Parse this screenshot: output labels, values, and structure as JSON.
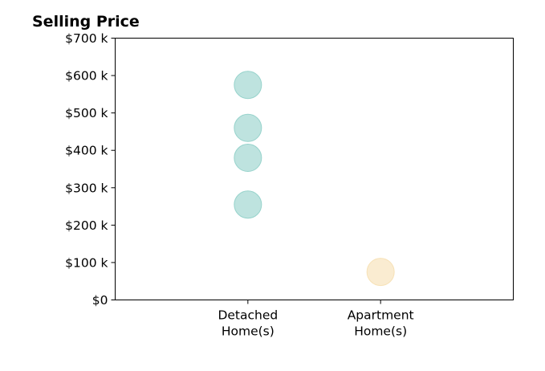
{
  "chart_data": {
    "type": "scatter",
    "title": "Selling Price",
    "xlabel": "",
    "ylabel": "",
    "categories": [
      "Detached Home(s)",
      "Apartment Home(s)"
    ],
    "category_tick_lines": [
      [
        "Detached",
        "Home(s)"
      ],
      [
        "Apartment",
        "Home(s)"
      ]
    ],
    "xlim": [
      -1,
      2
    ],
    "ylim": [
      0,
      700000
    ],
    "yticks": [
      0,
      100000,
      200000,
      300000,
      400000,
      500000,
      600000,
      700000
    ],
    "ytick_labels": [
      "$0",
      "$100 k",
      "$200 k",
      "$300 k",
      "$400 k",
      "$500 k",
      "$600 k",
      "$700 k"
    ],
    "grid": false,
    "legend": "none",
    "series": [
      {
        "category": "Detached Home(s)",
        "color": "#8fcfc8",
        "values": [
          575000,
          460000,
          380000,
          255000
        ]
      },
      {
        "category": "Apartment Home(s)",
        "color": "#f6dfb0",
        "values": [
          75000
        ]
      }
    ]
  }
}
